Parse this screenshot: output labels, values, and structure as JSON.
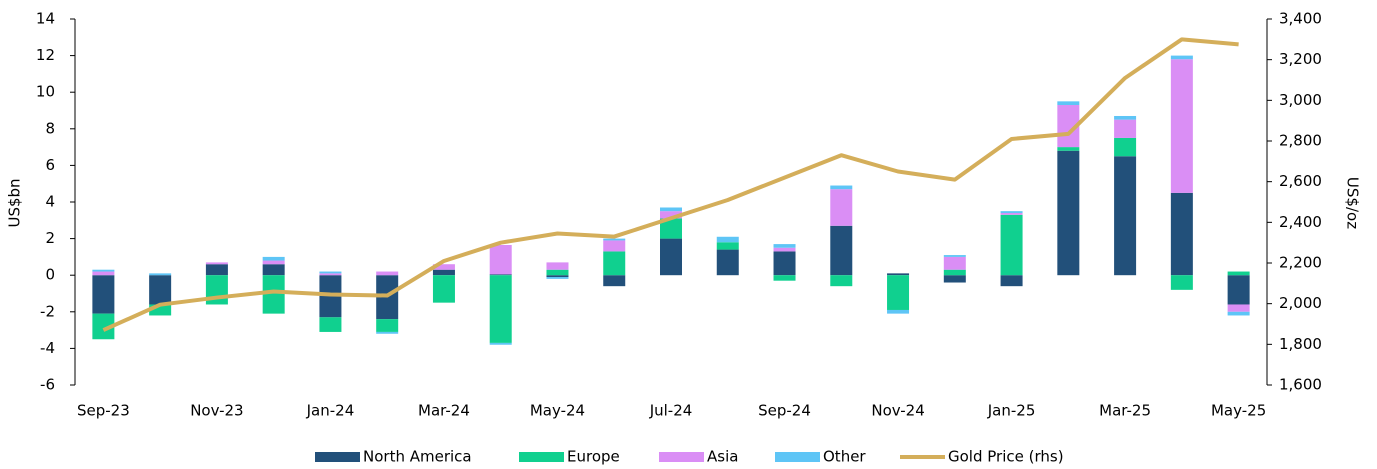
{
  "chart_data": {
    "type": "bar",
    "stacked": true,
    "categories": [
      "Sep-23",
      null,
      "Nov-23",
      null,
      "Jan-24",
      null,
      "Mar-24",
      null,
      "May-24",
      null,
      "Jul-24",
      null,
      "Sep-24",
      null,
      "Nov-24",
      null,
      "Jan-25",
      null,
      "Mar-25",
      null,
      "May-25"
    ],
    "y_label": "US$bn",
    "y2_label": "US$/oz",
    "ylim": [
      -6,
      14
    ],
    "yticks": [
      -6,
      -4,
      -2,
      0,
      2,
      4,
      6,
      8,
      10,
      12,
      14
    ],
    "y2lim": [
      1600,
      3400
    ],
    "y2ticks": [
      {
        "value": 1600,
        "label": "1,600"
      },
      {
        "value": 1800,
        "label": "1,800"
      },
      {
        "value": 2000,
        "label": "2,000"
      },
      {
        "value": 2200,
        "label": "2,200"
      },
      {
        "value": 2400,
        "label": "2,400"
      },
      {
        "value": 2600,
        "label": "2,600"
      },
      {
        "value": 2800,
        "label": "2,800"
      },
      {
        "value": 3000,
        "label": "3,000"
      },
      {
        "value": 3200,
        "label": "3,200"
      },
      {
        "value": 3400,
        "label": "3,400"
      }
    ],
    "legend": "bottom",
    "series": [
      {
        "name": "North America",
        "color": "#22507a",
        "values": [
          -2.1,
          -1.6,
          0.6,
          0.6,
          -2.3,
          -2.4,
          0.3,
          0.05,
          -0.1,
          -0.6,
          2.0,
          1.4,
          1.3,
          2.7,
          0.1,
          -0.4,
          -0.6,
          6.8,
          6.5,
          4.5,
          -1.6
        ]
      },
      {
        "name": "Europe",
        "color": "#10d08f",
        "values": [
          -1.4,
          -0.6,
          -1.6,
          -2.1,
          -0.8,
          -0.7,
          -1.5,
          -3.7,
          0.3,
          1.3,
          1.1,
          0.4,
          -0.3,
          -0.6,
          -1.9,
          0.3,
          3.3,
          0.2,
          1.0,
          -0.8,
          0.2
        ]
      },
      {
        "name": "Asia",
        "color": "#da8ef5",
        "values": [
          0.2,
          0,
          0.1,
          0.2,
          0.1,
          0.2,
          0.3,
          1.6,
          0.4,
          0.6,
          0.4,
          0,
          0.2,
          2.0,
          0,
          0.7,
          0.1,
          2.3,
          1.0,
          7.3,
          -0.4
        ]
      },
      {
        "name": "Other",
        "color": "#5ec5f6",
        "values": [
          0.1,
          0.1,
          0,
          0.2,
          0.1,
          -0.1,
          0,
          -0.1,
          -0.1,
          0.1,
          0.2,
          0.3,
          0.2,
          0.2,
          -0.2,
          0.1,
          0.1,
          0.2,
          0.2,
          0.2,
          -0.2
        ]
      },
      {
        "name": "Gold Price (rhs)",
        "type": "line",
        "axis": "y2",
        "color": "#d4ae5a",
        "values": [
          1870,
          1995,
          2030,
          2060,
          2045,
          2040,
          2210,
          2300,
          2345,
          2330,
          2420,
          2510,
          2620,
          2730,
          2650,
          2610,
          2810,
          2835,
          3110,
          3300,
          3275
        ]
      }
    ]
  }
}
